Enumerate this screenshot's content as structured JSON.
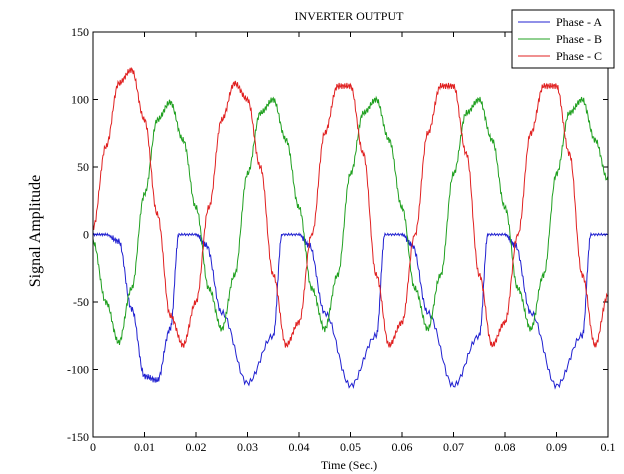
{
  "chart_data": {
    "type": "line",
    "title": "INVERTER OUTPUT",
    "xlabel": "Time (Sec.)",
    "ylabel": "Signal Amplitude",
    "xlim": [
      0,
      0.1
    ],
    "ylim": [
      -150,
      150
    ],
    "xticks": [
      0,
      0.01,
      0.02,
      0.03,
      0.04,
      0.05,
      0.06,
      0.07,
      0.08,
      0.09,
      0.1
    ],
    "xtick_labels": [
      "0",
      "0.01",
      "0.02",
      "0.03",
      "0.04",
      "0.05",
      "0.06",
      "0.07",
      "0.08",
      "0.09",
      "0.1"
    ],
    "yticks": [
      -150,
      -100,
      -50,
      0,
      50,
      100,
      150
    ],
    "ytick_labels": [
      "-150",
      "-100",
      "-50",
      "0",
      "50",
      "100",
      "150"
    ],
    "grid": false,
    "legend_position": "top-right",
    "series": [
      {
        "name": "Phase - A",
        "color": "#2020d0",
        "x": [
          0,
          0.0025,
          0.005,
          0.0075,
          0.01,
          0.0125,
          0.015,
          0.0167,
          0.02,
          0.022,
          0.025,
          0.03,
          0.035,
          0.0367,
          0.04,
          0.042,
          0.045,
          0.05,
          0.055,
          0.0567,
          0.06,
          0.062,
          0.065,
          0.07,
          0.075,
          0.0767,
          0.08,
          0.082,
          0.085,
          0.09,
          0.095,
          0.0967,
          0.1
        ],
        "y": [
          0,
          0,
          -5,
          -55,
          -105,
          -108,
          -70,
          0,
          0,
          -8,
          -58,
          -110,
          -75,
          0,
          0,
          -8,
          -58,
          -112,
          -75,
          0,
          0,
          -8,
          -58,
          -112,
          -75,
          0,
          0,
          -8,
          -58,
          -112,
          -75,
          0,
          0
        ]
      },
      {
        "name": "Phase - B",
        "color": "#20a020",
        "x": [
          0,
          0.0025,
          0.005,
          0.0075,
          0.01,
          0.0125,
          0.015,
          0.0175,
          0.02,
          0.0225,
          0.025,
          0.0275,
          0.03,
          0.0325,
          0.035,
          0.0375,
          0.04,
          0.0425,
          0.045,
          0.0475,
          0.05,
          0.0525,
          0.055,
          0.0575,
          0.06,
          0.0625,
          0.065,
          0.0675,
          0.07,
          0.0725,
          0.075,
          0.0775,
          0.08,
          0.0825,
          0.085,
          0.0875,
          0.09,
          0.0925,
          0.095,
          0.0975,
          0.1
        ],
        "y": [
          -5,
          -50,
          -80,
          -40,
          30,
          85,
          98,
          70,
          20,
          -40,
          -70,
          -30,
          45,
          90,
          100,
          70,
          20,
          -40,
          -70,
          -30,
          45,
          90,
          100,
          70,
          20,
          -40,
          -70,
          -30,
          45,
          90,
          100,
          70,
          20,
          -40,
          -70,
          -30,
          45,
          90,
          100,
          70,
          40
        ]
      },
      {
        "name": "Phase - C",
        "color": "#e02020",
        "x": [
          0,
          0.0025,
          0.005,
          0.0075,
          0.01,
          0.0125,
          0.015,
          0.0175,
          0.02,
          0.0225,
          0.025,
          0.0275,
          0.03,
          0.0325,
          0.035,
          0.0375,
          0.04,
          0.0425,
          0.045,
          0.0475,
          0.05,
          0.0525,
          0.055,
          0.0575,
          0.06,
          0.0625,
          0.065,
          0.0675,
          0.07,
          0.0725,
          0.075,
          0.0775,
          0.08,
          0.0825,
          0.085,
          0.0875,
          0.09,
          0.0925,
          0.095,
          0.0975,
          0.1
        ],
        "y": [
          5,
          65,
          112,
          122,
          85,
          15,
          -60,
          -82,
          -50,
          20,
          85,
          112,
          100,
          50,
          -30,
          -82,
          -65,
          0,
          75,
          110,
          110,
          60,
          -30,
          -82,
          -65,
          0,
          75,
          110,
          110,
          60,
          -30,
          -82,
          -65,
          0,
          75,
          110,
          110,
          60,
          -30,
          -82,
          -45
        ]
      }
    ]
  }
}
